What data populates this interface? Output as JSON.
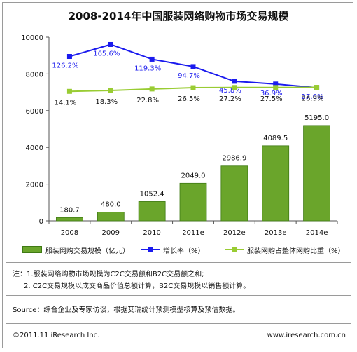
{
  "title": "2008-2014年中国服装网络购物市场交易规模",
  "chart_data": {
    "type": "bar",
    "categories": [
      "2008",
      "2009",
      "2010",
      "2011e",
      "2012e",
      "2013e",
      "2014e"
    ],
    "ylim": [
      0,
      10000
    ],
    "yticks": [
      0,
      2000,
      4000,
      6000,
      8000,
      10000
    ],
    "series": [
      {
        "name": "服装网购交易规模（亿元）",
        "kind": "bar",
        "color": "#6aa52b",
        "values": [
          180.7,
          480.0,
          1052.4,
          2049.0,
          2986.9,
          4089.5,
          5195.0
        ],
        "labels": [
          "180.7",
          "480.0",
          "1052.4",
          "2049.0",
          "2986.9",
          "4089.5",
          "5195.0"
        ]
      },
      {
        "name": "增长率（%）",
        "kind": "line",
        "color": "#1a1aee",
        "plot_y": [
          8950,
          9600,
          8800,
          8400,
          7600,
          7450,
          7250
        ],
        "labels": [
          "126.2%",
          "165.6%",
          "119.3%",
          "94.7%",
          "45.8%",
          "36.9%",
          "27.0%"
        ]
      },
      {
        "name": "服装网购占整体网购比重（%）",
        "kind": "line",
        "color": "#99cc33",
        "plot_y": [
          7050,
          7100,
          7180,
          7250,
          7260,
          7260,
          7270
        ],
        "labels": [
          "14.1%",
          "18.3%",
          "22.8%",
          "26.5%",
          "27.2%",
          "27.5%",
          "26.9%"
        ]
      }
    ],
    "grid": false,
    "legend": "bottom"
  },
  "notes": {
    "line1": "注：1.服装网络购物市场规模为C2C交易额和B2C交易额之和;",
    "line2": "2. C2C交易规模以成交商品价值总额计算，B2C交易规模以销售额计算。"
  },
  "source": "Source：综合企业及专家访谈，根据艾瑞统计预测模型核算及预估数据。",
  "footer": {
    "copyright": "©2011.11 iResearch Inc.",
    "website": "www.iresearch.com.cn"
  }
}
